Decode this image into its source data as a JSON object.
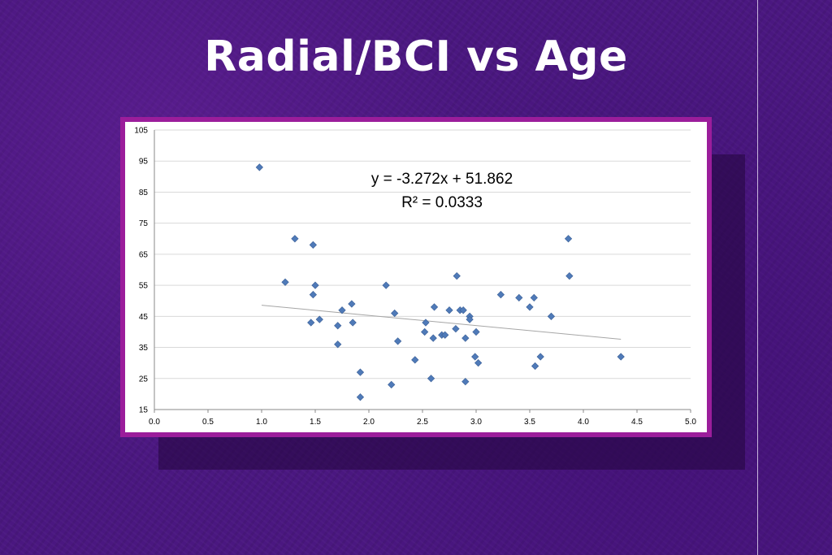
{
  "slide": {
    "title": "Radial/BCI vs Age"
  },
  "chart_data": {
    "type": "scatter",
    "title": "",
    "xlabel": "",
    "ylabel": "",
    "xlim": [
      0.0,
      5.0
    ],
    "ylim": [
      15,
      105
    ],
    "x_ticks": [
      "0.0",
      "0.5",
      "1.0",
      "1.5",
      "2.0",
      "2.5",
      "3.0",
      "3.5",
      "4.0",
      "4.5",
      "5.0"
    ],
    "y_ticks": [
      "15",
      "25",
      "35",
      "45",
      "55",
      "65",
      "75",
      "85",
      "95",
      "105"
    ],
    "grid": true,
    "marker_color": "#4f7ab8",
    "trendline": {
      "slope": -3.272,
      "intercept": 51.862,
      "x_range": [
        1.0,
        4.35
      ],
      "equation": "y = -3.272x + 51.862",
      "r_squared": "R² = 0.0333"
    },
    "points": [
      {
        "x": 0.98,
        "y": 93
      },
      {
        "x": 1.22,
        "y": 56
      },
      {
        "x": 1.31,
        "y": 70
      },
      {
        "x": 1.46,
        "y": 43
      },
      {
        "x": 1.48,
        "y": 68
      },
      {
        "x": 1.48,
        "y": 52
      },
      {
        "x": 1.5,
        "y": 55
      },
      {
        "x": 1.54,
        "y": 44
      },
      {
        "x": 1.71,
        "y": 42
      },
      {
        "x": 1.71,
        "y": 36
      },
      {
        "x": 1.75,
        "y": 47
      },
      {
        "x": 1.84,
        "y": 49
      },
      {
        "x": 1.85,
        "y": 43
      },
      {
        "x": 1.92,
        "y": 27
      },
      {
        "x": 1.92,
        "y": 19
      },
      {
        "x": 2.16,
        "y": 55
      },
      {
        "x": 2.21,
        "y": 23
      },
      {
        "x": 2.24,
        "y": 46
      },
      {
        "x": 2.27,
        "y": 37
      },
      {
        "x": 2.43,
        "y": 31
      },
      {
        "x": 2.52,
        "y": 40
      },
      {
        "x": 2.53,
        "y": 43
      },
      {
        "x": 2.58,
        "y": 25
      },
      {
        "x": 2.6,
        "y": 38
      },
      {
        "x": 2.61,
        "y": 48
      },
      {
        "x": 2.68,
        "y": 39
      },
      {
        "x": 2.71,
        "y": 39
      },
      {
        "x": 2.75,
        "y": 47
      },
      {
        "x": 2.81,
        "y": 41
      },
      {
        "x": 2.82,
        "y": 58
      },
      {
        "x": 2.85,
        "y": 47
      },
      {
        "x": 2.88,
        "y": 47
      },
      {
        "x": 2.9,
        "y": 24
      },
      {
        "x": 2.9,
        "y": 38
      },
      {
        "x": 2.94,
        "y": 45
      },
      {
        "x": 2.94,
        "y": 44
      },
      {
        "x": 2.99,
        "y": 32
      },
      {
        "x": 3.0,
        "y": 40
      },
      {
        "x": 3.02,
        "y": 30
      },
      {
        "x": 3.23,
        "y": 52
      },
      {
        "x": 3.4,
        "y": 51
      },
      {
        "x": 3.5,
        "y": 48
      },
      {
        "x": 3.54,
        "y": 51
      },
      {
        "x": 3.55,
        "y": 29
      },
      {
        "x": 3.6,
        "y": 32
      },
      {
        "x": 3.7,
        "y": 45
      },
      {
        "x": 3.86,
        "y": 70
      },
      {
        "x": 3.87,
        "y": 58
      },
      {
        "x": 4.35,
        "y": 32
      }
    ]
  }
}
